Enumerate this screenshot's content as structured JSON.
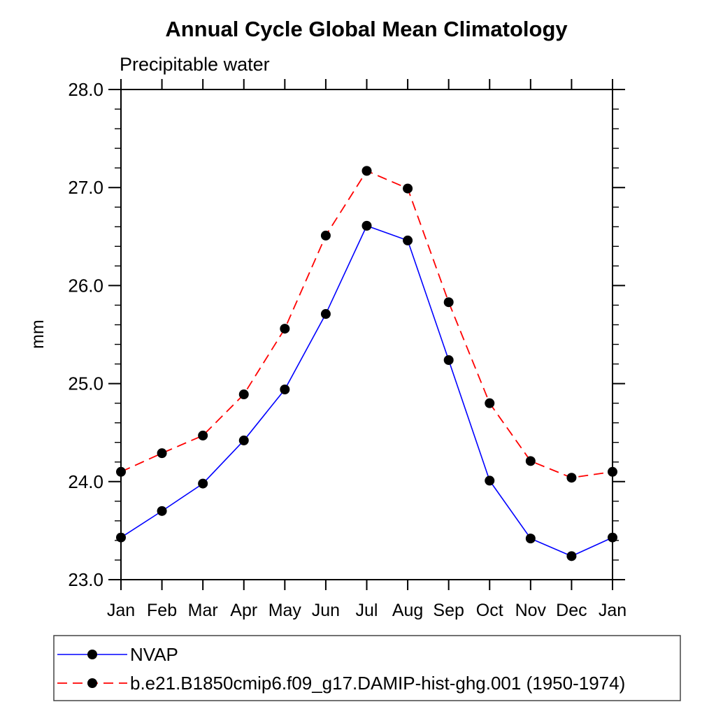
{
  "header": {
    "title": "Annual Cycle Global Mean Climatology",
    "subtitle": "Precipitable water"
  },
  "axes": {
    "ylabel": "mm"
  },
  "colors": {
    "nvap_line": "#0000ff",
    "model_line": "#ff0000",
    "marker": "#000000",
    "axis": "#000000",
    "legend_border": "#444444"
  },
  "legend": {
    "items": [
      {
        "label": "NVAP",
        "color": "#0000ff",
        "style": "solid",
        "marker": "filled-circle"
      },
      {
        "label": "b.e21.B1850cmip6.f09_g17.DAMIP-hist-ghg.001 (1950-1974)",
        "color": "#ff0000",
        "style": "dashed",
        "marker": "filled-circle"
      }
    ]
  },
  "chart_data": {
    "type": "line",
    "title": "Annual Cycle Global Mean Climatology",
    "subtitle": "Precipitable water",
    "xlabel": "",
    "ylabel": "mm",
    "x_categories": [
      "Jan",
      "Feb",
      "Mar",
      "Apr",
      "May",
      "Jun",
      "Jul",
      "Aug",
      "Sep",
      "Oct",
      "Nov",
      "Dec",
      "Jan"
    ],
    "ylim": [
      23.0,
      28.0
    ],
    "ytick_labels": [
      "23.0",
      "24.0",
      "25.0",
      "26.0",
      "27.0",
      "28.0"
    ],
    "ytick_values": [
      23.0,
      24.0,
      25.0,
      26.0,
      27.0,
      28.0
    ],
    "ytick_minor_step": 0.2,
    "grid": false,
    "legend_position": "bottom",
    "marker": "filled-circle",
    "marker_color": "#000000",
    "series": [
      {
        "name": "NVAP",
        "color": "#0000ff",
        "line_style": "solid",
        "values": [
          23.43,
          23.7,
          23.98,
          24.42,
          24.94,
          25.71,
          26.61,
          26.46,
          25.24,
          24.01,
          23.42,
          23.24,
          23.43
        ]
      },
      {
        "name": "b.e21.B1850cmip6.f09_g17.DAMIP-hist-ghg.001 (1950-1974)",
        "color": "#ff0000",
        "line_style": "dashed",
        "values": [
          24.1,
          24.29,
          24.47,
          24.89,
          25.56,
          26.51,
          27.17,
          26.99,
          25.83,
          24.8,
          24.21,
          24.04,
          24.1
        ]
      }
    ]
  }
}
